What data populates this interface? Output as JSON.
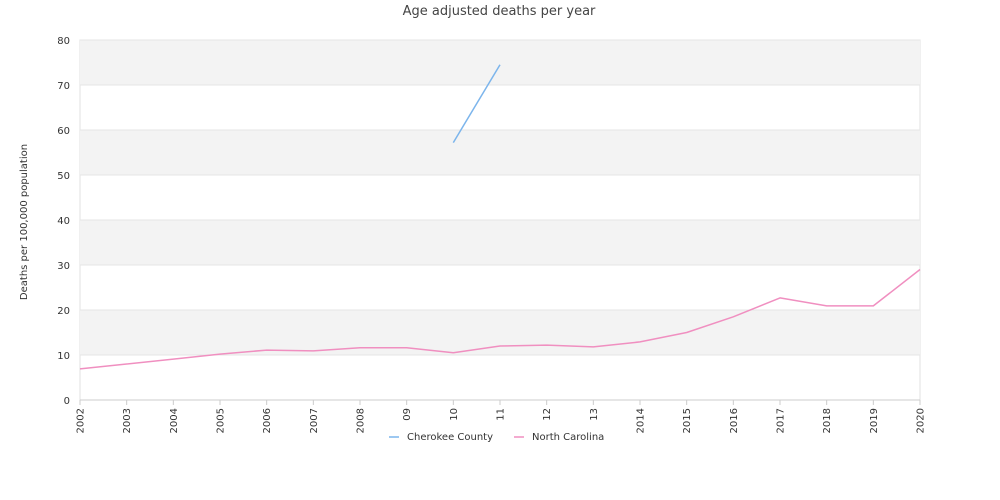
{
  "chart_data": {
    "type": "line",
    "title": "Age adjusted deaths per year",
    "ylabel": "Deaths per 100,000 population",
    "xlabel": "",
    "ylim": [
      0,
      80
    ],
    "y_ticks": [
      "0",
      "10",
      "20",
      "30",
      "40",
      "50",
      "60",
      "70",
      "80"
    ],
    "categories": [
      "2002",
      "2003",
      "2004",
      "2005",
      "2006",
      "2007",
      "2008",
      "09",
      "10",
      "11",
      "12",
      "13",
      "2014",
      "2015",
      "2016",
      "2017",
      "2018",
      "2019",
      "2020"
    ],
    "grid": true,
    "legend_position": "bottom",
    "series": [
      {
        "name": "Cherokee County",
        "color": "#7cb5ec",
        "values": [
          null,
          null,
          null,
          null,
          null,
          null,
          null,
          null,
          57.2,
          74.5,
          null,
          null,
          null,
          null,
          null,
          null,
          null,
          null,
          null
        ]
      },
      {
        "name": "North Carolina",
        "color": "#f08fc0",
        "values": [
          6.9,
          8.0,
          9.1,
          10.2,
          11.1,
          10.9,
          11.6,
          11.6,
          10.5,
          12.0,
          12.2,
          11.8,
          12.9,
          15.0,
          18.5,
          22.7,
          20.9,
          20.9,
          29.0
        ]
      }
    ]
  }
}
